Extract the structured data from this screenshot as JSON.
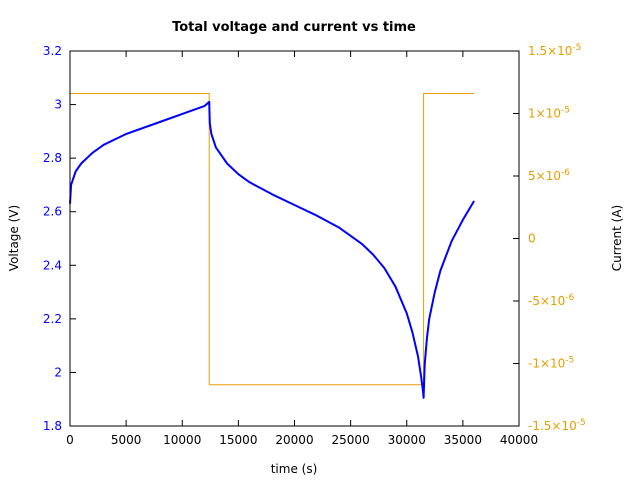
{
  "chart_data": {
    "type": "line",
    "title": "Total voltage and current vs time",
    "xlabel": "time (s)",
    "ylabel": "Voltage (V)",
    "y2label": "Current (A)",
    "xlim": [
      0,
      40000
    ],
    "ylim": [
      1.8,
      3.2
    ],
    "y2lim": [
      -1.5e-05,
      1.5e-05
    ],
    "grid": false,
    "legend": "none",
    "x_ticks": [
      "0",
      "5000",
      "10000",
      "15000",
      "20000",
      "25000",
      "30000",
      "35000",
      "40000"
    ],
    "y_ticks": [
      "1.8",
      "2",
      "2.2",
      "2.4",
      "2.6",
      "2.8",
      "3",
      "3.2"
    ],
    "y2_ticks": [
      {
        "mant": "-1.5×10",
        "exp": "-5",
        "value": -1.5e-05
      },
      {
        "mant": "-1×10",
        "exp": "-5",
        "value": -1e-05
      },
      {
        "mant": "-5×10",
        "exp": "-6",
        "value": -5e-06
      },
      {
        "mant": "0",
        "exp": "",
        "value": 0
      },
      {
        "mant": "5×10",
        "exp": "-6",
        "value": 5e-06
      },
      {
        "mant": "1×10",
        "exp": "-5",
        "value": 1e-05
      },
      {
        "mant": "1.5×10",
        "exp": "-5",
        "value": 1.5e-05
      }
    ],
    "colors": {
      "voltage": "#0000ff",
      "current": "#e69f00",
      "axis": "#000000"
    },
    "series": [
      {
        "name": "Voltage (V)",
        "axis": "y",
        "x": [
          0,
          100,
          500,
          1000,
          2000,
          3000,
          4000,
          5000,
          6000,
          7000,
          8000,
          9000,
          10000,
          11000,
          12000,
          12400,
          12450,
          12600,
          13000,
          14000,
          15000,
          16000,
          18000,
          20000,
          22000,
          24000,
          26000,
          27000,
          28000,
          29000,
          30000,
          30500,
          31000,
          31300,
          31450,
          31500,
          31600,
          31800,
          32000,
          32500,
          33000,
          34000,
          35000,
          36000
        ],
        "values": [
          2.63,
          2.7,
          2.75,
          2.78,
          2.82,
          2.85,
          2.87,
          2.89,
          2.905,
          2.92,
          2.935,
          2.95,
          2.965,
          2.98,
          2.995,
          3.01,
          2.93,
          2.89,
          2.84,
          2.78,
          2.74,
          2.71,
          2.665,
          2.625,
          2.585,
          2.54,
          2.48,
          2.44,
          2.39,
          2.32,
          2.22,
          2.15,
          2.06,
          1.98,
          1.93,
          1.905,
          2.03,
          2.13,
          2.2,
          2.3,
          2.38,
          2.49,
          2.57,
          2.64
        ]
      },
      {
        "name": "Current (A)",
        "axis": "y2",
        "x": [
          0,
          12400,
          12400,
          31500,
          31500,
          36000
        ],
        "values": [
          1.16e-05,
          1.16e-05,
          -1.17e-05,
          -1.17e-05,
          1.16e-05,
          1.16e-05
        ]
      }
    ]
  }
}
